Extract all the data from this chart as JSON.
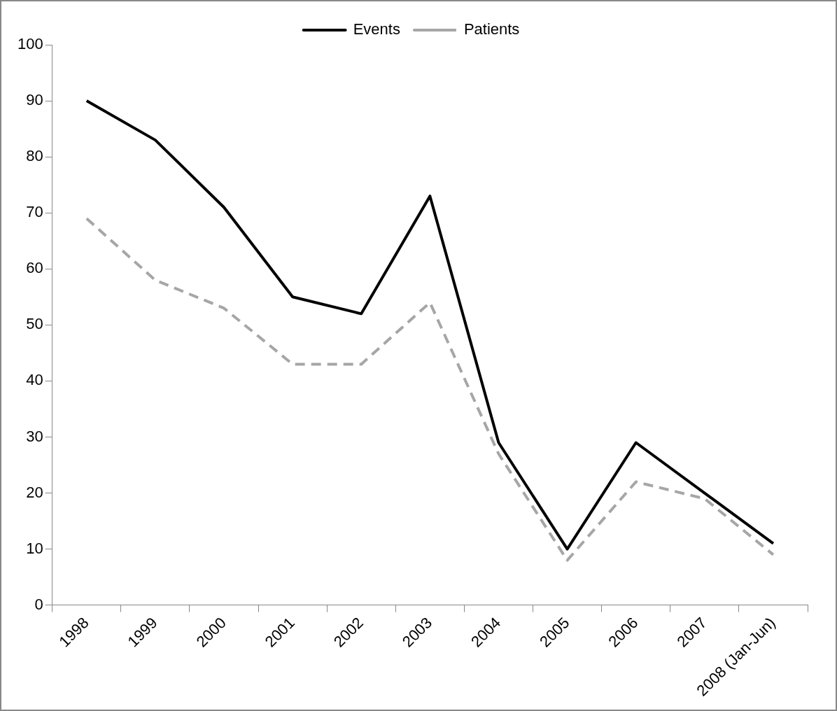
{
  "chart_data": {
    "type": "line",
    "categories": [
      "1998",
      "1999",
      "2000",
      "2001",
      "2002",
      "2003",
      "2004",
      "2005",
      "2006",
      "2007",
      "2008 (Jan-Jun)"
    ],
    "series": [
      {
        "name": "Events",
        "color": "#000000",
        "line_style": "solid",
        "values": [
          90,
          83,
          71,
          55,
          52,
          73,
          29,
          10,
          29,
          20,
          11
        ]
      },
      {
        "name": "Patients",
        "color": "#a6a6a6",
        "line_style": "dashed",
        "values": [
          69,
          58,
          53,
          43,
          43,
          54,
          27,
          8,
          22,
          19,
          9
        ]
      }
    ],
    "ylim": [
      0,
      100
    ],
    "yticks": [
      0,
      10,
      20,
      30,
      40,
      50,
      60,
      70,
      80,
      90,
      100
    ],
    "grid": false,
    "legend": "top",
    "marker": "none"
  }
}
